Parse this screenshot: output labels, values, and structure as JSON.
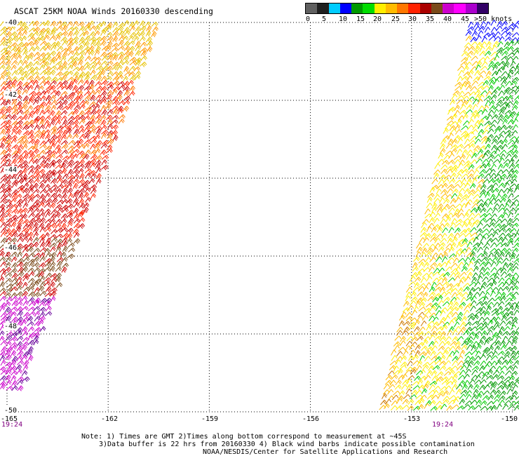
{
  "title": "ASCAT 25KM NOAA Winds 20160330 descending",
  "legend": {
    "colors": [
      "#606060",
      "#202020",
      "#00ccff",
      "#0000ff",
      "#009900",
      "#00dd00",
      "#ffee00",
      "#ffbb00",
      "#ff7700",
      "#ff2200",
      "#aa0000",
      "#7a4a1a",
      "#cc00cc",
      "#ff00ff",
      "#aa00cc",
      "#330066"
    ],
    "labels": [
      "0",
      "5",
      "10",
      "15",
      "20",
      "25",
      "30",
      "35",
      "40",
      "45",
      ">50 knots"
    ]
  },
  "map": {
    "lat_labels": [
      "-40",
      "-42",
      "-44",
      "-46",
      "-48",
      "-50"
    ],
    "lon_labels": [
      "-165",
      "-162",
      "-159",
      "-156",
      "-153",
      "-150"
    ],
    "lat_range": [
      -50,
      -40
    ],
    "lon_range": [
      -165,
      -150
    ],
    "time_labels": [
      "19:24",
      "19:24"
    ],
    "grid": "dotted",
    "swaths": [
      {
        "name": "west swath",
        "colors": [
          "#e6c200",
          "#ff9900",
          "#ff2200",
          "#cc0000",
          "#7a4a1a",
          "#cc00cc",
          "#660099"
        ]
      },
      {
        "name": "east swath",
        "colors": [
          "#009900",
          "#00cc00",
          "#ffee00",
          "#ffbb00",
          "#0000ff",
          "#cc7700"
        ]
      }
    ]
  },
  "notes": {
    "line1": "Note: 1) Times are GMT 2)Times along bottom correspond to measurement at ~45S",
    "line2": "3)Data buffer is 22 hrs from 20160330 4) Black wind barbs indicate possible contamination",
    "line3": "NOAA/NESDIS/Center for Satellite Applications and Research"
  }
}
